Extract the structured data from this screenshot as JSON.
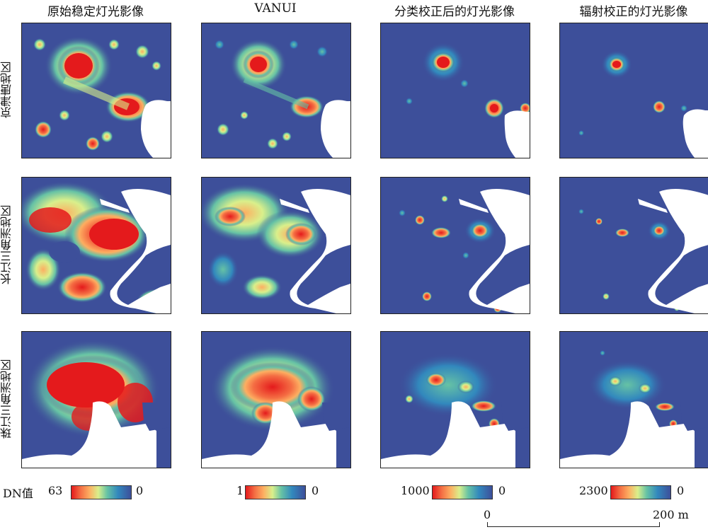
{
  "columns": [
    {
      "title": "原始稳定灯光影像"
    },
    {
      "title": "VANUI"
    },
    {
      "title": "分类校正后的灯光影像"
    },
    {
      "title": "辐射校正的灯光影像"
    }
  ],
  "rows": [
    {
      "label": "京津唐地区"
    },
    {
      "label": "长江三角洲地区"
    },
    {
      "label": "珠江三角洲地区"
    }
  ],
  "legend": {
    "dn_label": "DN值",
    "scales": [
      {
        "max": "63",
        "min": "0"
      },
      {
        "max": "1",
        "min": "0"
      },
      {
        "max": "1000",
        "min": "0"
      },
      {
        "max": "2300",
        "min": "0"
      }
    ]
  },
  "scale_bar": {
    "start": "0",
    "end": "200 m"
  },
  "colors": {
    "background_low": "#3d4f9a",
    "high": "#e41a1c",
    "mid": "#fdae61",
    "green": "#66c2a5",
    "cyan": "#3288bd"
  }
}
